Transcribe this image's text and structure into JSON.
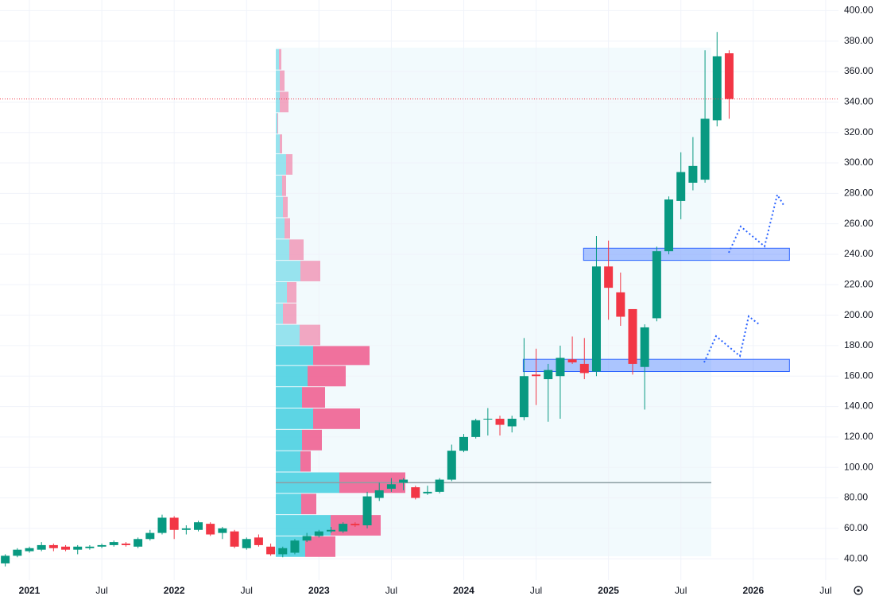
{
  "chart_data": {
    "type": "candlestick",
    "up_color": "#089981",
    "down_color": "#f23645",
    "x": [
      "2020-11",
      "2020-12",
      "2021-01",
      "2021-02",
      "2021-03",
      "2021-04",
      "2021-05",
      "2021-06",
      "2021-07",
      "2021-08",
      "2021-09",
      "2021-10",
      "2021-11",
      "2021-12",
      "2022-01",
      "2022-02",
      "2022-03",
      "2022-04",
      "2022-05",
      "2022-06",
      "2022-07",
      "2022-08",
      "2022-09",
      "2022-10",
      "2022-11",
      "2022-12",
      "2023-01",
      "2023-02",
      "2023-03",
      "2023-04",
      "2023-05",
      "2023-06",
      "2023-07",
      "2023-08",
      "2023-09",
      "2023-10",
      "2023-11",
      "2023-12",
      "2024-01",
      "2024-02",
      "2024-03",
      "2024-04",
      "2024-05",
      "2024-06",
      "2024-07",
      "2024-08",
      "2024-09",
      "2024-10",
      "2024-11",
      "2024-12",
      "2025-01",
      "2025-02",
      "2025-03",
      "2025-04",
      "2025-05",
      "2025-06",
      "2025-07",
      "2025-08",
      "2025-09",
      "2025-10",
      "2025-11"
    ],
    "open": [
      37,
      42,
      45,
      46,
      49,
      48,
      46,
      47,
      48,
      49,
      50,
      48,
      53,
      57,
      67,
      59,
      59,
      63,
      57,
      58,
      47,
      54,
      48,
      43,
      44,
      52,
      55,
      58,
      58,
      63,
      62,
      80,
      86,
      90,
      87,
      83,
      84,
      92,
      111,
      120,
      132,
      132,
      127,
      133,
      161,
      158,
      160,
      171,
      168,
      163,
      232,
      215,
      204,
      166,
      198,
      242,
      275,
      287,
      289,
      328,
      372
    ],
    "high": [
      43,
      47,
      48,
      51,
      50,
      49,
      49,
      49,
      50,
      52,
      51,
      54,
      59,
      69,
      68,
      62,
      65,
      64,
      61,
      59,
      54,
      56,
      50,
      48,
      53,
      57,
      59,
      61,
      64,
      64,
      84,
      90,
      93,
      93,
      88,
      88,
      93,
      115,
      122,
      132,
      139,
      134,
      134,
      185,
      178,
      168,
      180,
      186,
      185,
      252,
      249,
      228,
      204,
      194,
      245,
      278,
      307,
      317,
      374,
      386,
      374
    ],
    "low": [
      35,
      41,
      44,
      45,
      45,
      45,
      43,
      46,
      47,
      48,
      48,
      47,
      52,
      56,
      53,
      56,
      58,
      55,
      53,
      47,
      46,
      48,
      42,
      41,
      43,
      51,
      54,
      57,
      57,
      61,
      60,
      78,
      84,
      85,
      79,
      82,
      83,
      91,
      110,
      119,
      121,
      121,
      123,
      131,
      141,
      130,
      132,
      168,
      158,
      160,
      197,
      193,
      161,
      138,
      196,
      240,
      263,
      282,
      287,
      324,
      329
    ],
    "close": [
      42,
      46,
      47,
      49,
      47,
      46,
      48,
      48,
      49,
      51,
      49,
      53,
      57,
      67,
      59,
      60,
      64,
      56,
      60,
      48,
      53,
      49,
      43,
      47,
      52,
      55,
      58,
      59,
      63,
      62,
      81,
      85,
      89,
      92,
      80,
      84,
      92,
      111,
      120,
      131,
      132,
      128,
      132,
      160,
      160,
      164,
      172,
      169,
      162,
      232,
      218,
      199,
      168,
      192,
      242,
      276,
      294,
      298,
      329,
      370,
      342
    ],
    "ylim": [
      26,
      407
    ],
    "yticks": [
      {
        "value": 40,
        "label": "40.00"
      },
      {
        "value": 60,
        "label": "60.00"
      },
      {
        "value": 80,
        "label": "80.00"
      },
      {
        "value": 100,
        "label": "100.00"
      },
      {
        "value": 120,
        "label": "120.00"
      },
      {
        "value": 140,
        "label": "140.00"
      },
      {
        "value": 160,
        "label": "160.00"
      },
      {
        "value": 180,
        "label": "180.00"
      },
      {
        "value": 200,
        "label": "200.00"
      },
      {
        "value": 220,
        "label": "220.00"
      },
      {
        "value": 240,
        "label": "240.00"
      },
      {
        "value": 260,
        "label": "260.00"
      },
      {
        "value": 280,
        "label": "280.00"
      },
      {
        "value": 300,
        "label": "300.00"
      },
      {
        "value": 320,
        "label": "320.00"
      },
      {
        "value": 340,
        "label": "340.00"
      },
      {
        "value": 360,
        "label": "360.00"
      },
      {
        "value": 380,
        "label": "380.00"
      },
      {
        "value": 400,
        "label": "400.00"
      }
    ],
    "xticks": [
      {
        "value": "2021-01",
        "label": "2021"
      },
      {
        "value": "2021-07",
        "label": "Jul"
      },
      {
        "value": "2022-01",
        "label": "2022"
      },
      {
        "value": "2022-07",
        "label": "Jul"
      },
      {
        "value": "2023-01",
        "label": "2023"
      },
      {
        "value": "2023-07",
        "label": "Jul"
      },
      {
        "value": "2024-01",
        "label": "2024"
      },
      {
        "value": "2024-07",
        "label": "Jul"
      },
      {
        "value": "2025-01",
        "label": "2025"
      },
      {
        "value": "2025-07",
        "label": "Jul"
      },
      {
        "value": "2026-01",
        "label": "2026"
      },
      {
        "value": "2026-07",
        "label": "Jul"
      }
    ],
    "grid": true,
    "volume_profile": {
      "bins": [
        41,
        55,
        69,
        83,
        97,
        111,
        125,
        139,
        153,
        167,
        180,
        194,
        208,
        222,
        236,
        250,
        264,
        278,
        292,
        306,
        319,
        333,
        347,
        361,
        375
      ],
      "up_volume": [
        37,
        69,
        32,
        80,
        31,
        33,
        47,
        33,
        40,
        47,
        30,
        9,
        14,
        31,
        17,
        11,
        9,
        8,
        13,
        5,
        2,
        5,
        5,
        4
      ],
      "down_volume": [
        38,
        63,
        19,
        83,
        13,
        25,
        59,
        29,
        48,
        71,
        26,
        17,
        12,
        25,
        18,
        7,
        6,
        5,
        8,
        3,
        1,
        11,
        6,
        3
      ],
      "up_color": "#4dd0e1",
      "down_color": "#f06292",
      "value_area": [
        41,
        180
      ],
      "poc": 90
    },
    "zones": [
      {
        "x": [
          "2024-11",
          "2026-04"
        ],
        "y": [
          236,
          244
        ]
      },
      {
        "x": [
          "2024-06",
          "2026-04"
        ],
        "y": [
          163,
          171
        ]
      }
    ]
  }
}
